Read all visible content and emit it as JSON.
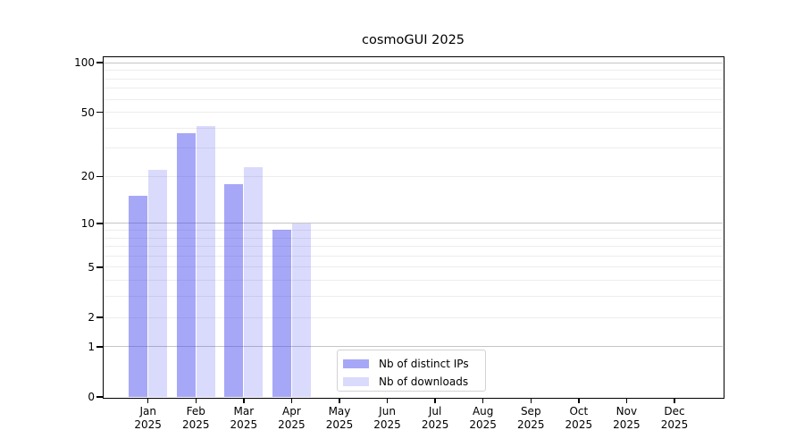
{
  "chart_data": {
    "type": "bar",
    "title": "cosmoGUI 2025",
    "categories": [
      "Jan 2025",
      "Feb 2025",
      "Mar 2025",
      "Apr 2025",
      "May 2025",
      "Jun 2025",
      "Jul 2025",
      "Aug 2025",
      "Sep 2025",
      "Oct 2025",
      "Nov 2025",
      "Dec 2025"
    ],
    "x_tick_months": [
      "Jan",
      "Feb",
      "Mar",
      "Apr",
      "May",
      "Jun",
      "Jul",
      "Aug",
      "Sep",
      "Oct",
      "Nov",
      "Dec"
    ],
    "x_tick_year": "2025",
    "series": [
      {
        "name": "Nb of distinct IPs",
        "color": "rgba(60,60,238,0.45)",
        "color_on_white": "#a8a8f6",
        "values": [
          15,
          37,
          18,
          9,
          0,
          0,
          0,
          0,
          0,
          0,
          0,
          0
        ]
      },
      {
        "name": "Nb of downloads",
        "color": "rgba(60,60,238,0.19)",
        "color_on_white": "#dadaf8",
        "values": [
          22,
          41,
          23,
          10,
          0,
          0,
          0,
          0,
          0,
          0,
          0,
          0
        ]
      }
    ],
    "xlabel": "",
    "ylabel": "",
    "yscale": "symlog (position proportional to ln(1+value))",
    "yticks": [
      0,
      1,
      2,
      5,
      10,
      20,
      50,
      100
    ],
    "gridlines_major": [
      1,
      10,
      100
    ],
    "gridlines_minor": [
      2,
      3,
      4,
      5,
      6,
      7,
      8,
      9,
      20,
      30,
      40,
      50,
      60,
      70,
      80,
      90
    ],
    "ylim": [
      0,
      110
    ],
    "grid": "both",
    "legend_position": "inside, lower center",
    "axis_color": "#000000",
    "major_grid_color": "#c5c5c5",
    "minor_grid_color": "#ededed"
  }
}
